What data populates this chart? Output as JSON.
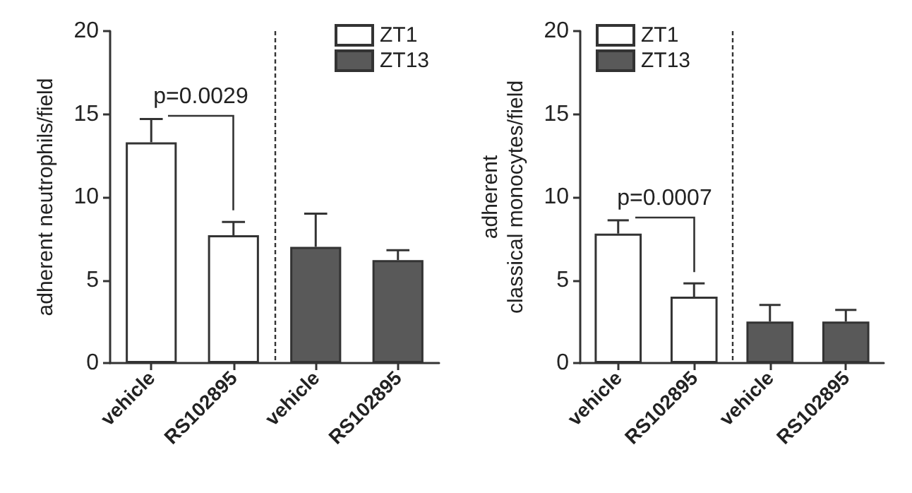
{
  "chart_data": [
    {
      "type": "bar",
      "ylabel": "adherent neutrophils/field",
      "categories": [
        "vehicle",
        "RS102895",
        "vehicle",
        "RS102895"
      ],
      "series": [
        {
          "name": "ZT1",
          "color": "#ffffff",
          "values": [
            13.3,
            7.7,
            null,
            null
          ],
          "errors": [
            [
              13.3,
              14.7
            ],
            [
              7.7,
              8.5
            ],
            null,
            null
          ]
        },
        {
          "name": "ZT13",
          "color": "#595959",
          "values": [
            null,
            null,
            7.0,
            6.2
          ],
          "errors": [
            null,
            null,
            [
              7.0,
              9.0
            ],
            [
              6.2,
              6.8
            ]
          ]
        }
      ],
      "ylim": [
        0,
        20
      ],
      "yticks": [
        0,
        5,
        10,
        15,
        20
      ],
      "legend": "top right",
      "grid": false,
      "annotations": [
        "p=0.0029"
      ]
    },
    {
      "type": "bar",
      "ylabel": "adherent classical monocytes/field",
      "categories": [
        "vehicle",
        "RS102895",
        "vehicle",
        "RS102895"
      ],
      "series": [
        {
          "name": "ZT1",
          "color": "#ffffff",
          "values": [
            7.8,
            4.0,
            null,
            null
          ],
          "errors": [
            [
              7.8,
              8.6
            ],
            [
              4.0,
              4.8
            ],
            null,
            null
          ]
        },
        {
          "name": "ZT13",
          "color": "#595959",
          "values": [
            null,
            null,
            2.5,
            2.5
          ],
          "errors": [
            null,
            null,
            [
              2.5,
              3.5
            ],
            [
              2.5,
              3.2
            ]
          ]
        }
      ],
      "ylim": [
        0,
        20
      ],
      "yticks": [
        0,
        5,
        10,
        15,
        20
      ],
      "legend": "top left",
      "grid": false,
      "annotations": [
        "p=0.0007"
      ]
    }
  ]
}
